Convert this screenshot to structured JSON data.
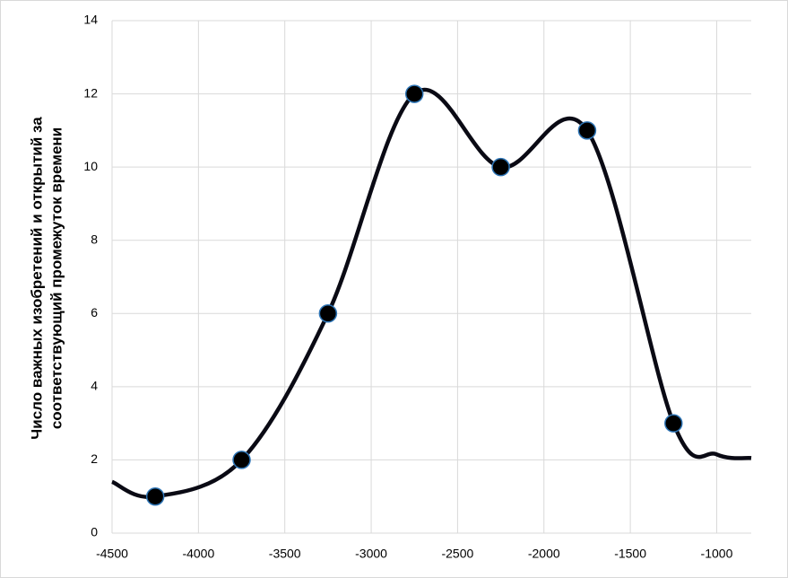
{
  "chart_data": {
    "type": "scatter",
    "ylabel": [
      "Число важных изобретений и открытий за",
      "соответствующий промежуток времени"
    ],
    "xlim": [
      -4500,
      -800
    ],
    "xticks": [
      -4500,
      -4000,
      -3500,
      -3000,
      -2500,
      -2000,
      -1500,
      -1000
    ],
    "ylim": [
      0,
      14
    ],
    "yticks": [
      0,
      2,
      4,
      6,
      8,
      10,
      12,
      14
    ],
    "grid": true,
    "line": {
      "color": "#0a0a14",
      "x": [
        -4500,
        -4250,
        -3750,
        -3250,
        -2750,
        -2250,
        -1750,
        -1250,
        -1000,
        -800
      ],
      "values": [
        1.4,
        1,
        2,
        6,
        12,
        10,
        11,
        3,
        2.15,
        2.05
      ]
    },
    "series": [
      {
        "color": "#000000",
        "edge_color": "#2e75b6",
        "x": [
          -4250,
          -3750,
          -3250,
          -2750,
          -2250,
          -1750,
          -1250
        ],
        "values": [
          1,
          2,
          6,
          12,
          10,
          11,
          3
        ]
      }
    ]
  }
}
